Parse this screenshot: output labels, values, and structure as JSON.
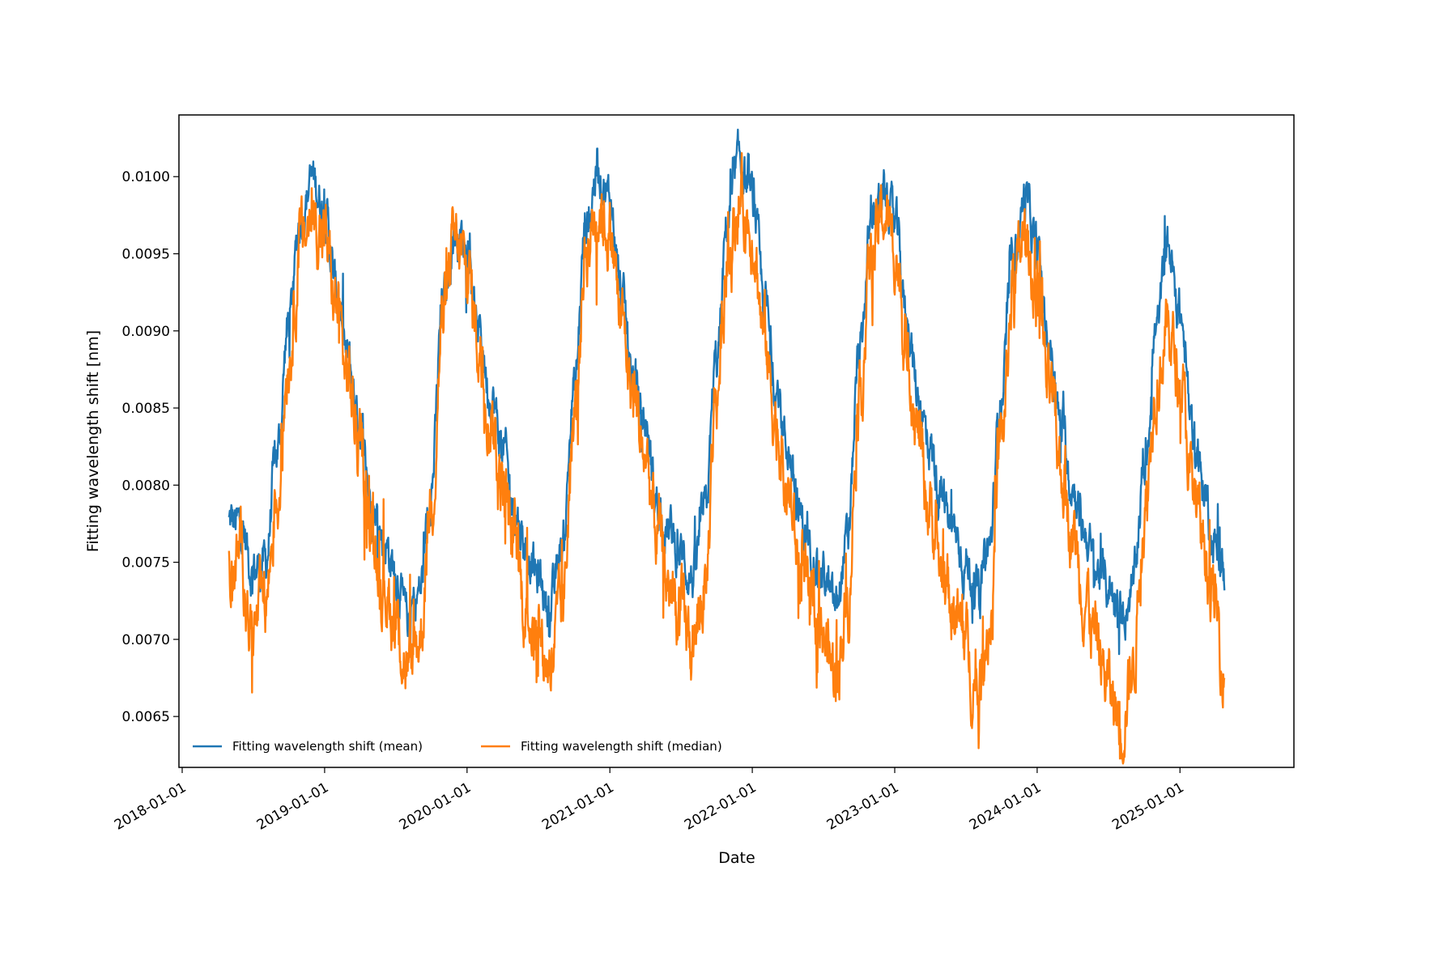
{
  "chart_data": {
    "type": "line",
    "xlabel": "Date",
    "ylabel": "Fitting wavelength shift [nm]",
    "x_tick_labels": [
      "2018-01-01",
      "2019-01-01",
      "2020-01-01",
      "2021-01-01",
      "2022-01-01",
      "2023-01-01",
      "2024-01-01",
      "2025-01-01"
    ],
    "y_tick_labels": [
      "0.0065",
      "0.0070",
      "0.0075",
      "0.0080",
      "0.0085",
      "0.0090",
      "0.0095",
      "0.0100"
    ],
    "y_ticks": [
      0.0065,
      0.007,
      0.0075,
      0.008,
      0.0085,
      0.009,
      0.0095,
      0.01
    ],
    "xlim": [
      "2018-01-01",
      "2025-10-20"
    ],
    "ylim": [
      0.00617,
      0.0104
    ],
    "grid": false,
    "legend_position": "lower-left",
    "date_range": [
      "2018-05-01",
      "2025-04-25"
    ],
    "series": [
      {
        "name": "Fitting wavelength shift (mean)",
        "color": "#1f77b4",
        "points": [
          [
            "2018-05-01",
            0.00776
          ],
          [
            "2018-06-01",
            0.00773
          ],
          [
            "2018-07-01",
            0.00745
          ],
          [
            "2018-08-01",
            0.00748
          ],
          [
            "2018-09-01",
            0.0082
          ],
          [
            "2018-10-01",
            0.00905
          ],
          [
            "2018-11-01",
            0.00975
          ],
          [
            "2018-12-01",
            0.00998
          ],
          [
            "2019-01-01",
            0.00978
          ],
          [
            "2019-02-01",
            0.00925
          ],
          [
            "2019-03-01",
            0.0088
          ],
          [
            "2019-04-01",
            0.0084
          ],
          [
            "2019-05-01",
            0.0079
          ],
          [
            "2019-06-01",
            0.00765
          ],
          [
            "2019-07-01",
            0.00745
          ],
          [
            "2019-08-01",
            0.00712
          ],
          [
            "2019-09-01",
            0.0073
          ],
          [
            "2019-10-01",
            0.008
          ],
          [
            "2019-11-01",
            0.0092
          ],
          [
            "2019-12-01",
            0.00965
          ],
          [
            "2020-01-01",
            0.00955
          ],
          [
            "2020-02-01",
            0.00898
          ],
          [
            "2020-03-01",
            0.0086
          ],
          [
            "2020-04-01",
            0.00825
          ],
          [
            "2020-05-01",
            0.00785
          ],
          [
            "2020-06-01",
            0.0076
          ],
          [
            "2020-07-01",
            0.0074
          ],
          [
            "2020-08-01",
            0.0072
          ],
          [
            "2020-09-01",
            0.0076
          ],
          [
            "2020-10-01",
            0.0086
          ],
          [
            "2020-11-01",
            0.0097
          ],
          [
            "2020-12-01",
            0.01005
          ],
          [
            "2021-01-01",
            0.00985
          ],
          [
            "2021-02-01",
            0.0092
          ],
          [
            "2021-03-01",
            0.0087
          ],
          [
            "2021-04-01",
            0.0084
          ],
          [
            "2021-05-01",
            0.0079
          ],
          [
            "2021-06-01",
            0.0077
          ],
          [
            "2021-07-01",
            0.00755
          ],
          [
            "2021-08-01",
            0.0074
          ],
          [
            "2021-09-01",
            0.0078
          ],
          [
            "2021-10-01",
            0.0088
          ],
          [
            "2021-11-01",
            0.00975
          ],
          [
            "2021-12-01",
            0.0101
          ],
          [
            "2022-01-01",
            0.00985
          ],
          [
            "2022-02-01",
            0.0092
          ],
          [
            "2022-03-01",
            0.00865
          ],
          [
            "2022-04-01",
            0.00825
          ],
          [
            "2022-05-01",
            0.0078
          ],
          [
            "2022-06-01",
            0.0076
          ],
          [
            "2022-07-01",
            0.00742
          ],
          [
            "2022-08-01",
            0.0072
          ],
          [
            "2022-09-01",
            0.0076
          ],
          [
            "2022-10-01",
            0.0088
          ],
          [
            "2022-11-01",
            0.00965
          ],
          [
            "2022-12-01",
            0.0099
          ],
          [
            "2023-01-01",
            0.0097
          ],
          [
            "2023-02-01",
            0.0091
          ],
          [
            "2023-03-01",
            0.0086
          ],
          [
            "2023-04-01",
            0.00825
          ],
          [
            "2023-05-01",
            0.0079
          ],
          [
            "2023-06-01",
            0.0077
          ],
          [
            "2023-07-01",
            0.0075
          ],
          [
            "2023-08-01",
            0.0073
          ],
          [
            "2023-09-01",
            0.0076
          ],
          [
            "2023-10-01",
            0.0086
          ],
          [
            "2023-11-01",
            0.0095
          ],
          [
            "2023-12-01",
            0.00985
          ],
          [
            "2024-01-01",
            0.0095
          ],
          [
            "2024-02-01",
            0.0089
          ],
          [
            "2024-03-01",
            0.0084
          ],
          [
            "2024-04-01",
            0.008
          ],
          [
            "2024-05-01",
            0.0077
          ],
          [
            "2024-06-01",
            0.00745
          ],
          [
            "2024-07-01",
            0.00735
          ],
          [
            "2024-08-01",
            0.00715
          ],
          [
            "2024-09-01",
            0.0073
          ],
          [
            "2024-10-01",
            0.0081
          ],
          [
            "2024-11-01",
            0.009
          ],
          [
            "2024-12-01",
            0.00955
          ],
          [
            "2025-01-01",
            0.0091
          ],
          [
            "2025-02-01",
            0.0084
          ],
          [
            "2025-03-01",
            0.008
          ],
          [
            "2025-04-01",
            0.0076
          ],
          [
            "2025-04-25",
            0.0074
          ]
        ]
      },
      {
        "name": "Fitting wavelength shift (median)",
        "color": "#ff7f0e",
        "points": [
          [
            "2018-05-01",
            0.00745
          ],
          [
            "2018-06-01",
            0.00755
          ],
          [
            "2018-07-01",
            0.00705
          ],
          [
            "2018-08-01",
            0.00725
          ],
          [
            "2018-09-01",
            0.0079
          ],
          [
            "2018-10-01",
            0.00885
          ],
          [
            "2018-11-01",
            0.00955
          ],
          [
            "2018-12-01",
            0.00975
          ],
          [
            "2019-01-01",
            0.0096
          ],
          [
            "2019-02-01",
            0.00915
          ],
          [
            "2019-03-01",
            0.0087
          ],
          [
            "2019-04-01",
            0.00825
          ],
          [
            "2019-05-01",
            0.0077
          ],
          [
            "2019-06-01",
            0.00735
          ],
          [
            "2019-07-01",
            0.00712
          ],
          [
            "2019-08-01",
            0.0068
          ],
          [
            "2019-09-01",
            0.007
          ],
          [
            "2019-10-01",
            0.0079
          ],
          [
            "2019-11-01",
            0.0091
          ],
          [
            "2019-12-01",
            0.00955
          ],
          [
            "2020-01-01",
            0.0094
          ],
          [
            "2020-02-01",
            0.0089
          ],
          [
            "2020-03-01",
            0.00845
          ],
          [
            "2020-04-01",
            0.008
          ],
          [
            "2020-05-01",
            0.0076
          ],
          [
            "2020-06-01",
            0.0072
          ],
          [
            "2020-07-01",
            0.007
          ],
          [
            "2020-08-01",
            0.00685
          ],
          [
            "2020-09-01",
            0.0072
          ],
          [
            "2020-10-01",
            0.0084
          ],
          [
            "2020-11-01",
            0.00955
          ],
          [
            "2020-12-01",
            0.0098
          ],
          [
            "2021-01-01",
            0.00965
          ],
          [
            "2021-02-01",
            0.00905
          ],
          [
            "2021-03-01",
            0.0086
          ],
          [
            "2021-04-01",
            0.0082
          ],
          [
            "2021-05-01",
            0.0077
          ],
          [
            "2021-06-01",
            0.00735
          ],
          [
            "2021-07-01",
            0.00715
          ],
          [
            "2021-08-01",
            0.00695
          ],
          [
            "2021-09-01",
            0.0073
          ],
          [
            "2021-10-01",
            0.0086
          ],
          [
            "2021-11-01",
            0.0095
          ],
          [
            "2021-12-01",
            0.00985
          ],
          [
            "2022-01-01",
            0.00965
          ],
          [
            "2022-02-01",
            0.00895
          ],
          [
            "2022-03-01",
            0.00845
          ],
          [
            "2022-04-01",
            0.00795
          ],
          [
            "2022-05-01",
            0.0075
          ],
          [
            "2022-06-01",
            0.0072
          ],
          [
            "2022-07-01",
            0.007
          ],
          [
            "2022-08-01",
            0.0068
          ],
          [
            "2022-09-01",
            0.0072
          ],
          [
            "2022-10-01",
            0.0085
          ],
          [
            "2022-11-01",
            0.00945
          ],
          [
            "2022-12-01",
            0.00975
          ],
          [
            "2023-01-01",
            0.00955
          ],
          [
            "2023-02-01",
            0.0089
          ],
          [
            "2023-03-01",
            0.00835
          ],
          [
            "2023-04-01",
            0.00785
          ],
          [
            "2023-05-01",
            0.00745
          ],
          [
            "2023-06-01",
            0.0072
          ],
          [
            "2023-07-01",
            0.00695
          ],
          [
            "2023-08-01",
            0.00665
          ],
          [
            "2023-09-01",
            0.0071
          ],
          [
            "2023-10-01",
            0.0083
          ],
          [
            "2023-11-01",
            0.0093
          ],
          [
            "2023-12-01",
            0.0096
          ],
          [
            "2024-01-01",
            0.00925
          ],
          [
            "2024-02-01",
            0.0086
          ],
          [
            "2024-03-01",
            0.0081
          ],
          [
            "2024-04-01",
            0.0077
          ],
          [
            "2024-05-01",
            0.0073
          ],
          [
            "2024-06-01",
            0.007
          ],
          [
            "2024-07-01",
            0.0067
          ],
          [
            "2024-08-01",
            0.00645
          ],
          [
            "2024-09-01",
            0.0068
          ],
          [
            "2024-10-01",
            0.0078
          ],
          [
            "2024-11-01",
            0.0087
          ],
          [
            "2024-12-01",
            0.009
          ],
          [
            "2025-01-01",
            0.0087
          ],
          [
            "2025-02-01",
            0.008
          ],
          [
            "2025-03-01",
            0.00765
          ],
          [
            "2025-04-01",
            0.0072
          ],
          [
            "2025-04-25",
            0.00685
          ]
        ]
      }
    ]
  }
}
